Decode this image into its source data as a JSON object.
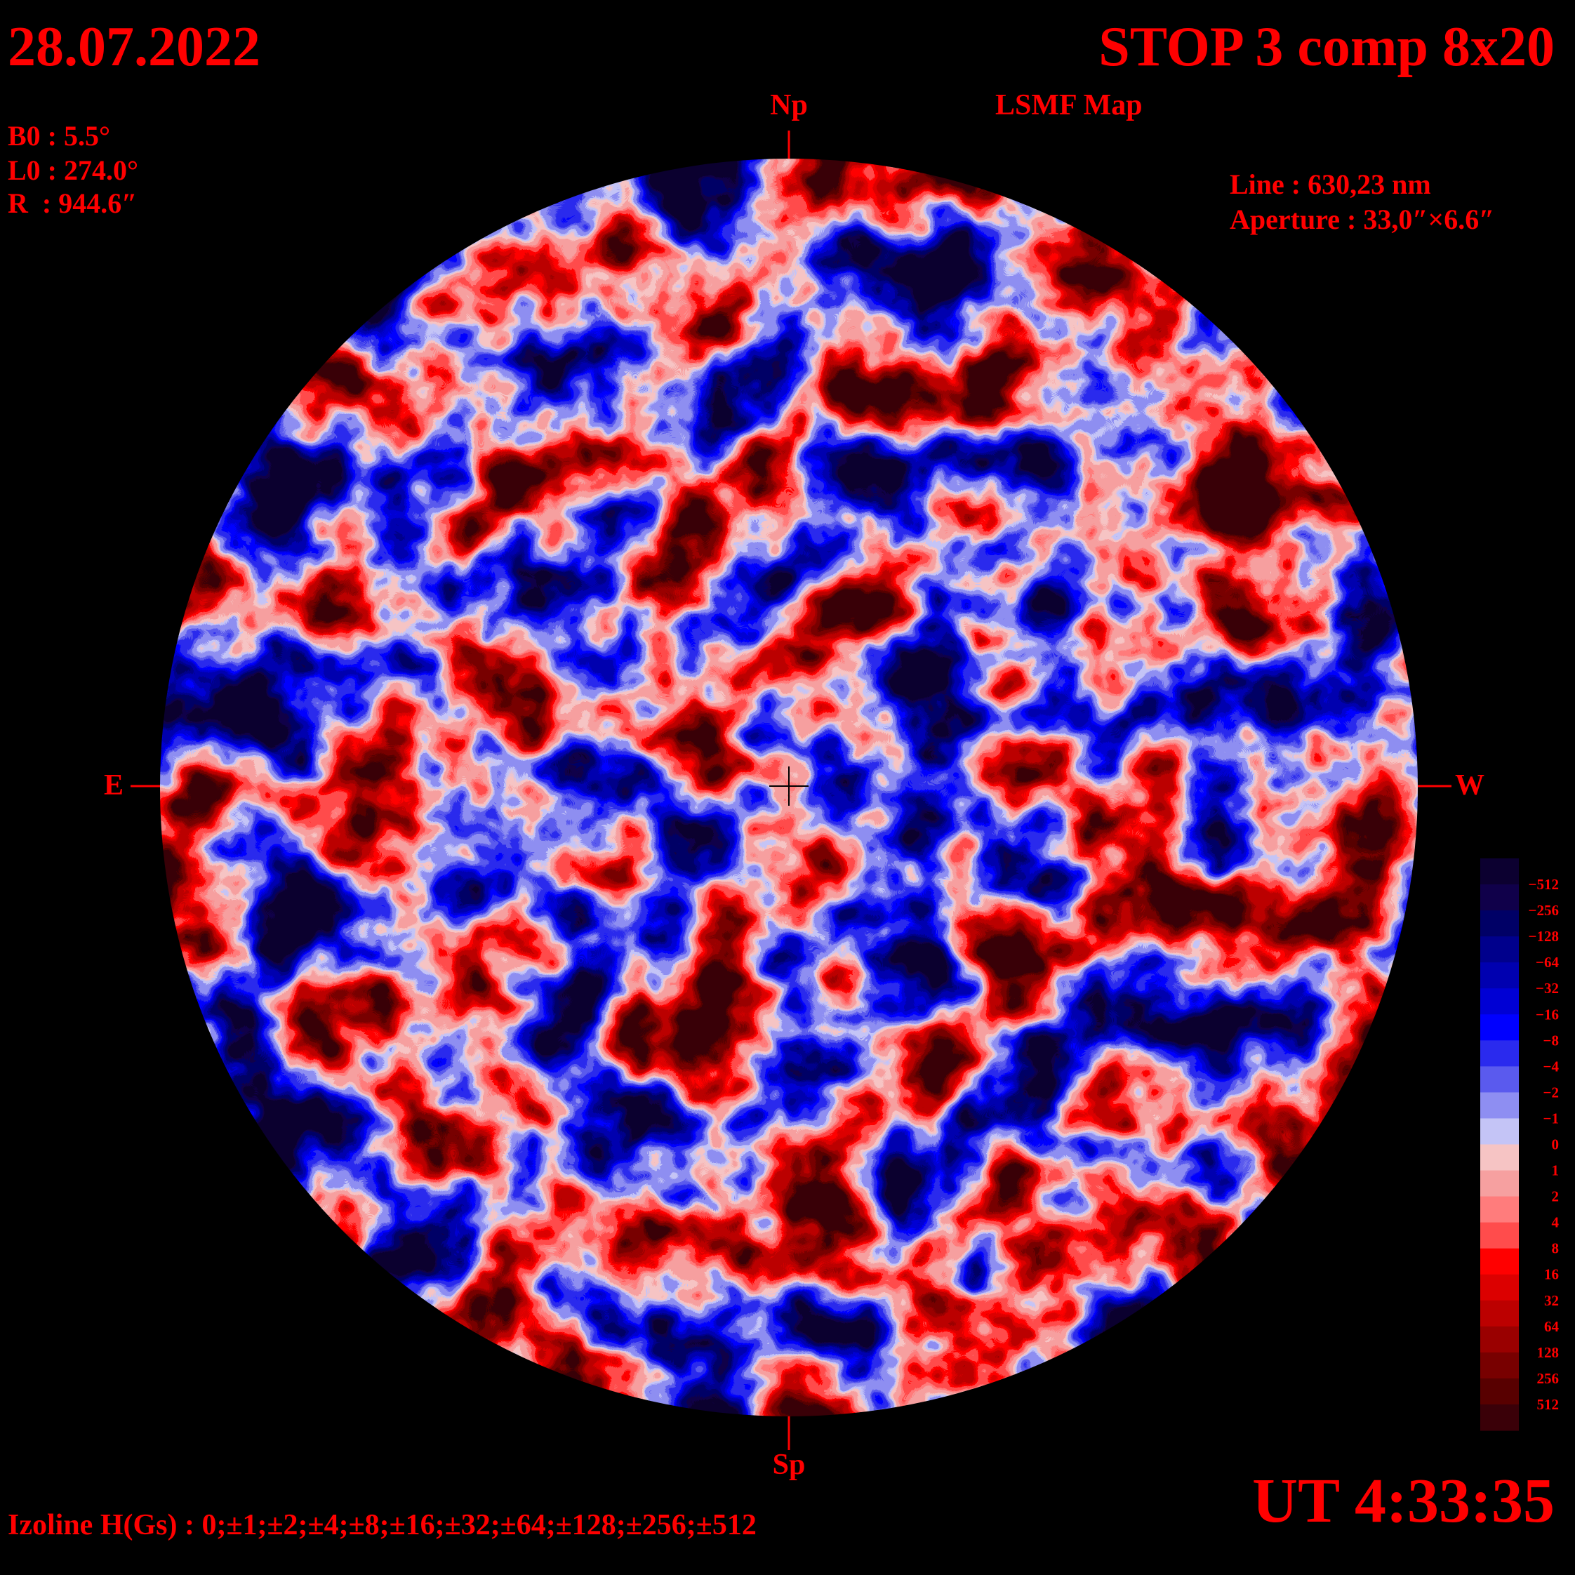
{
  "header": {
    "date": "28.07.2022",
    "title": "STOP 3 comp 8x20",
    "subtitle": "LSMF Map"
  },
  "parameters": [
    "B0 : 5.5°",
    "L0 : 274.0°",
    "R  : 944.6″"
  ],
  "instrument": [
    "Line : 630,23 nm",
    "Aperture : 33,0″×6.6″"
  ],
  "directions": {
    "north": "Np",
    "south": "Sp",
    "east": "E",
    "west": "W"
  },
  "colorbar": {
    "labels": [
      "−512",
      "−256",
      "−128",
      "−64",
      "−32",
      "−16",
      "−8",
      "−4",
      "−2",
      "−1",
      "0",
      "1",
      "2",
      "4",
      "8",
      "16",
      "32",
      "64",
      "128",
      "256",
      "512"
    ],
    "colors": [
      "#0c0030",
      "#10004a",
      "#000066",
      "#00008c",
      "#0000b0",
      "#0000d4",
      "#0000ff",
      "#2a2aee",
      "#5a5aee",
      "#8e8ef2",
      "#c4c4f6",
      "#f6c4c4",
      "#f6a0a0",
      "#ff7c7c",
      "#ff4c4c",
      "#ff0000",
      "#dc0000",
      "#bc0000",
      "#9a0000",
      "#780000",
      "#580000",
      "#3a0008"
    ]
  },
  "footer": {
    "isolines": "Izoline H(Gs) : 0;±1;±2;±4;±8;±16;±32;±64;±128;±256;±512",
    "time": "UT 4:33:35"
  }
}
